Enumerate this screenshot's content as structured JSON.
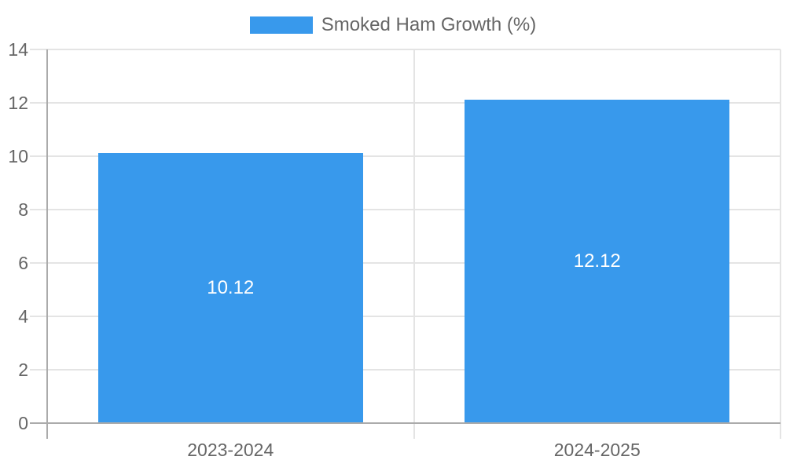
{
  "chart_data": {
    "type": "bar",
    "title": "",
    "legend": [
      {
        "label": "Smoked Ham Growth (%)",
        "color": "#3899ec"
      }
    ],
    "legend_position": "top-center",
    "categories": [
      "2023-2024",
      "2024-2025"
    ],
    "series": [
      {
        "name": "Smoked Ham Growth (%)",
        "color": "#3899ec",
        "values": [
          10.12,
          12.12
        ],
        "data_labels": [
          "10.12",
          "12.12"
        ]
      }
    ],
    "xlabel": "",
    "ylabel": "",
    "ylim": [
      0,
      14
    ],
    "yticks": [
      0,
      2,
      4,
      6,
      8,
      10,
      12,
      14
    ],
    "grid": true,
    "colors": {
      "bar": "#3899ec",
      "grid_line": "#e4e4e4",
      "axis_line": "#ababab",
      "axis_text": "#666666",
      "data_label": "#ffffff"
    }
  }
}
